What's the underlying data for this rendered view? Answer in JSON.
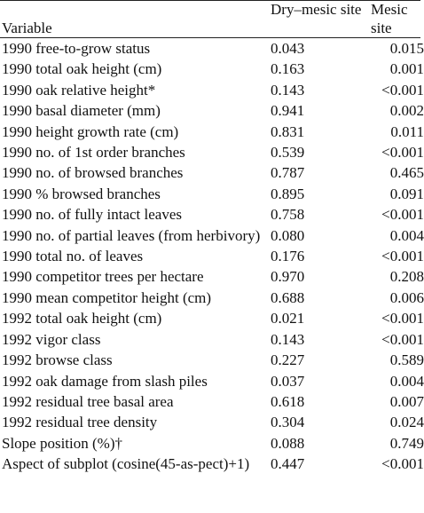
{
  "header": [
    "Variable",
    "Dry–mesic site",
    "Mesic site"
  ],
  "rows": [
    [
      "1990 free-to-grow status",
      "0.043",
      "0.015"
    ],
    [
      "1990 total oak height (cm)",
      "0.163",
      "0.001"
    ],
    [
      "1990 oak relative height*",
      "0.143",
      "<0.001"
    ],
    [
      "1990 basal diameter (mm)",
      "0.941",
      "0.002"
    ],
    [
      "1990 height growth rate (cm)",
      "0.831",
      "0.011"
    ],
    [
      "1990 no. of 1st order branches",
      "0.539",
      "<0.001"
    ],
    [
      "1990 no. of browsed branches",
      "0.787",
      "0.465"
    ],
    [
      "1990 % browsed branches",
      "0.895",
      "0.091"
    ],
    [
      "1990 no. of fully intact leaves",
      "0.758",
      "<0.001"
    ],
    [
      "1990 no. of partial leaves (from herbivory)",
      "0.080",
      "0.004"
    ],
    [
      "1990 total no. of leaves",
      "0.176",
      "<0.001"
    ],
    [
      "1990 competitor trees per hectare",
      "0.970",
      "0.208"
    ],
    [
      "1990 mean competitor height (cm)",
      "0.688",
      "0.006"
    ],
    [
      "1992 total oak height (cm)",
      "0.021",
      "<0.001"
    ],
    [
      "1992 vigor class",
      "0.143",
      "<0.001"
    ],
    [
      "1992 browse class",
      "0.227",
      "0.589"
    ],
    [
      "1992 oak damage from slash piles",
      "0.037",
      "0.004"
    ],
    [
      "1992 residual tree basal area",
      "0.618",
      "0.007"
    ],
    [
      "1992 residual tree density",
      "0.304",
      "0.024"
    ],
    [
      "Slope position (%)†",
      "0.088",
      "0.749"
    ],
    [
      "Aspect of subplot (cosine(45-as-pect)+1)",
      "0.447",
      "<0.001"
    ]
  ]
}
